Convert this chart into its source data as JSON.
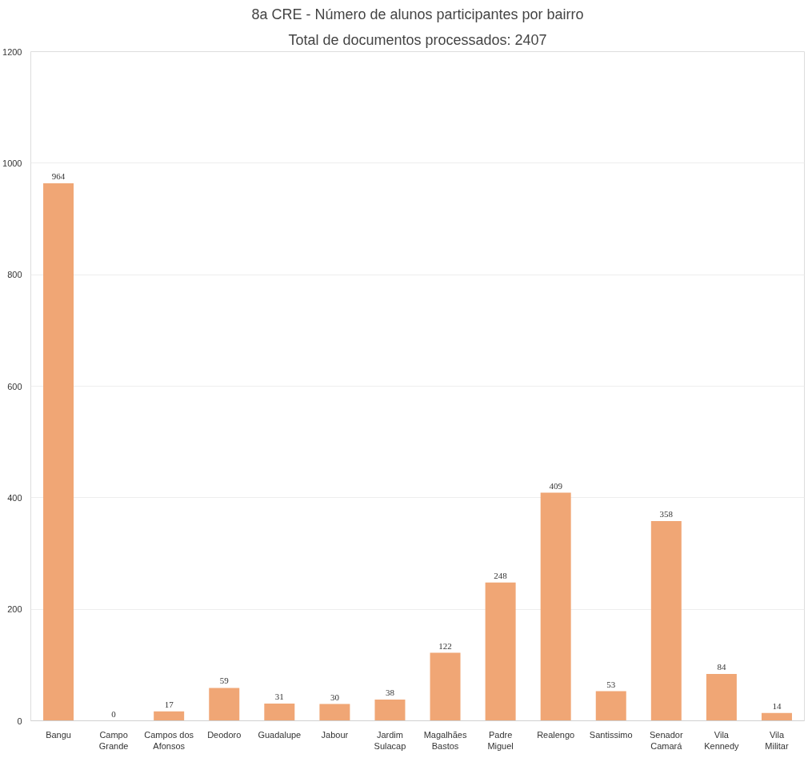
{
  "chart_data": {
    "type": "bar",
    "title": "8a CRE - Número de alunos participantes por bairro",
    "subtitle": "Total de documentos processados: 2407",
    "categories": [
      "Bangu",
      "Campo Grande",
      "Campos dos Afonsos",
      "Deodoro",
      "Guadalupe",
      "Jabour",
      "Jardim Sulacap",
      "Magalhães Bastos",
      "Padre Miguel",
      "Realengo",
      "Santissimo",
      "Senador Camará",
      "Vila Kennedy",
      "Vila Militar"
    ],
    "values": [
      964,
      0,
      17,
      59,
      31,
      30,
      38,
      122,
      248,
      409,
      53,
      358,
      84,
      14
    ],
    "color": "#f0a675",
    "ylim": [
      0,
      1200
    ],
    "yticks": [
      0,
      200,
      400,
      600,
      800,
      1000,
      1200
    ],
    "grid": "y",
    "data_labels": true
  }
}
